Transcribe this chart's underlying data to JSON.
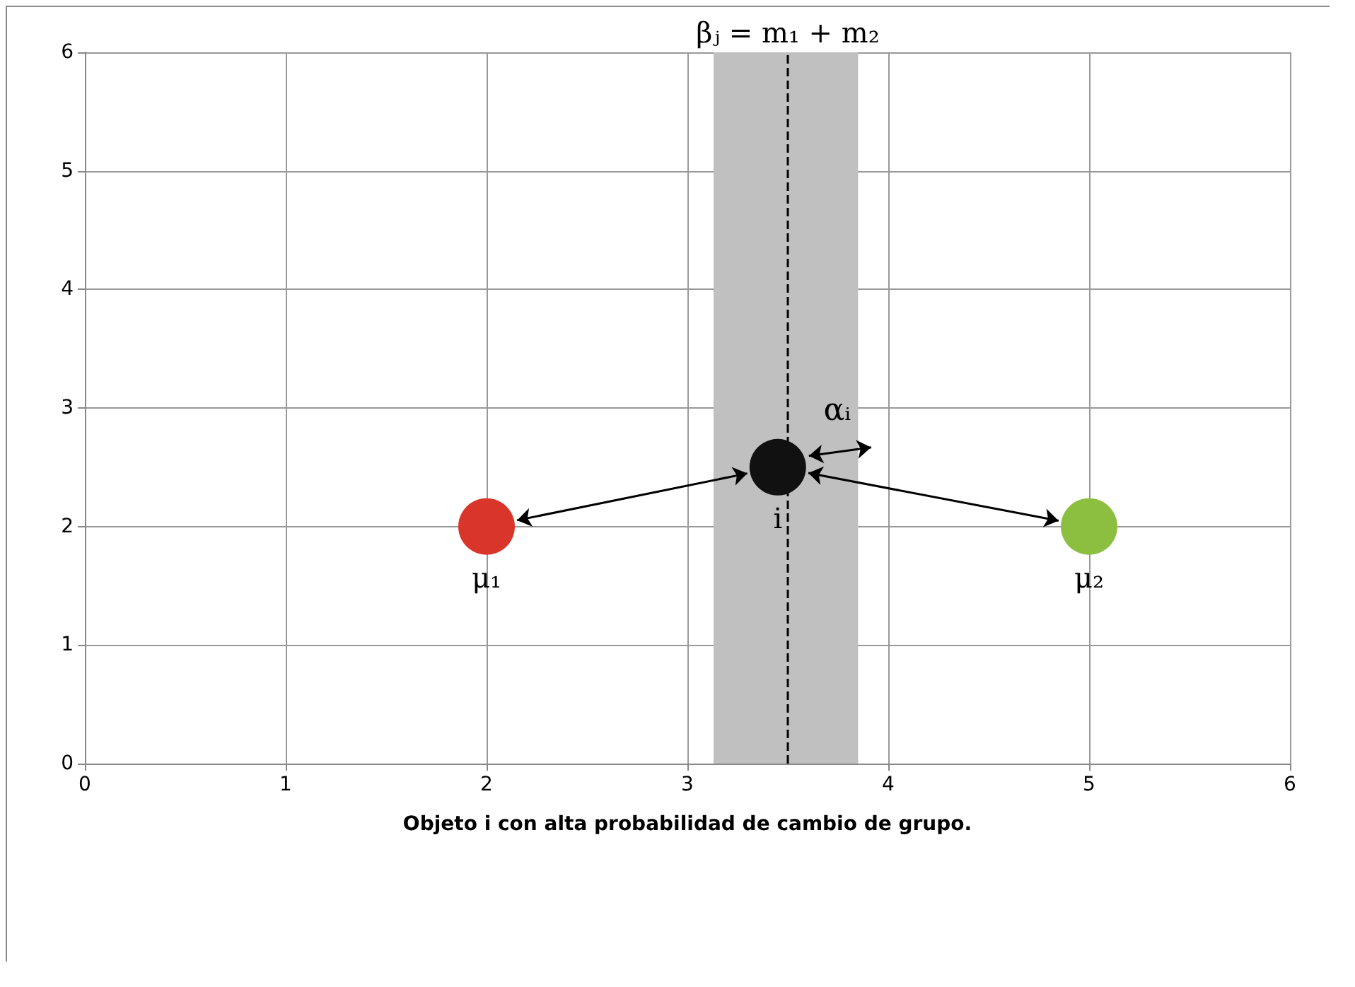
{
  "chart_data": {
    "type": "scatter",
    "xlabel": "Objeto i con alta probabilidad de cambio de grupo.",
    "x": [
      2,
      3.45,
      5
    ],
    "values": [
      2,
      2.5,
      2
    ],
    "colors": [
      "#d9352b",
      "#111111",
      "#8cbf3f"
    ],
    "value_labels": [
      "μ₁",
      "i",
      "μ₂"
    ],
    "xlim": [
      0,
      6
    ],
    "ylim": [
      0,
      6
    ],
    "xticks": [
      0,
      1,
      2,
      3,
      4,
      5,
      6
    ],
    "yticks": [
      0,
      1,
      2,
      3,
      4,
      5,
      6
    ],
    "grid": true,
    "marker": "circle",
    "ref_lines": [
      {
        "axis": "x",
        "value": 3.5,
        "label": "βⱼ = m₁ + m₂",
        "line_style": "dashed",
        "color": "#000000"
      }
    ],
    "bands": [
      {
        "axis": "x",
        "from": 3.13,
        "to": 3.85,
        "color": "#c0c0c0"
      }
    ],
    "annotations": [
      "αᵢ"
    ]
  }
}
